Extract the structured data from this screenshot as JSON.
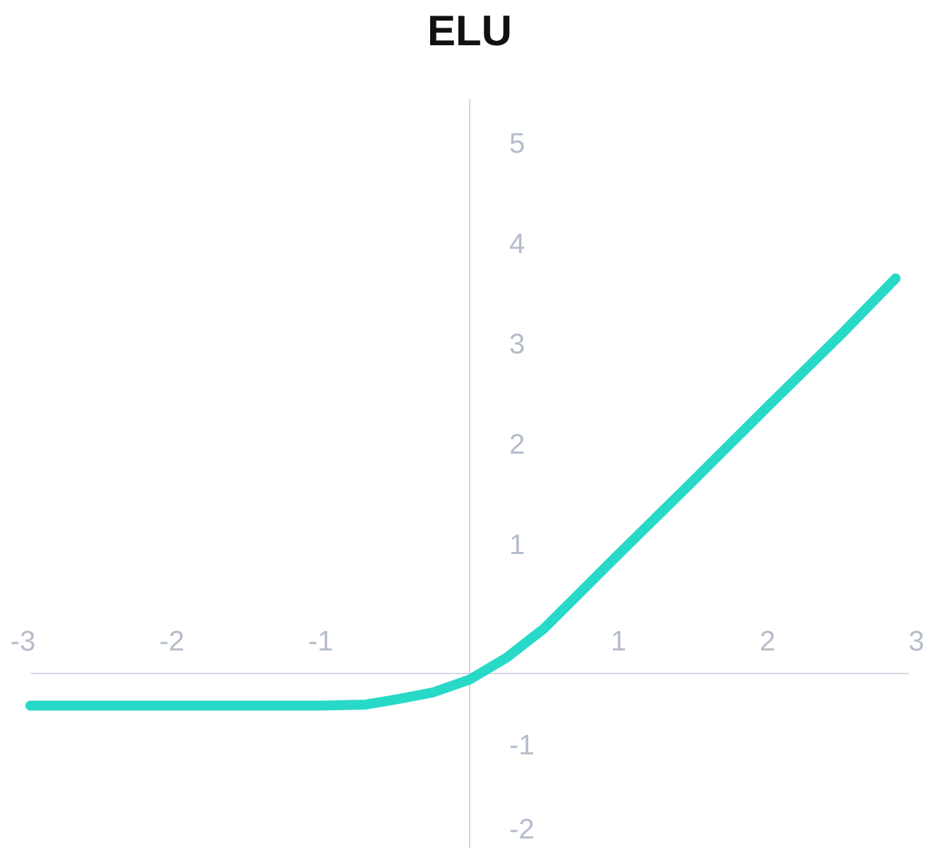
{
  "chart_data": {
    "type": "line",
    "title": "ELU",
    "x": [
      -2.95,
      -2,
      -1,
      -0.7,
      -0.5,
      -0.25,
      0,
      0.25,
      0.5,
      1,
      1.5,
      2,
      2.5,
      2.86
    ],
    "series": [
      {
        "color": "#28d9c8",
        "values": [
          -0.32,
          -0.32,
          -0.32,
          -0.31,
          -0.26,
          -0.19,
          -0.06,
          0.16,
          0.45,
          1.19,
          1.92,
          2.66,
          3.39,
          3.94
        ]
      }
    ],
    "xlim": [
      -2.95,
      2.95
    ],
    "ylim": [
      -1.74,
      5.73
    ],
    "xticks": [
      -3,
      -2,
      -1,
      1,
      2,
      3
    ],
    "yticks": [
      -2,
      -1,
      1,
      2,
      3,
      4,
      5
    ]
  }
}
